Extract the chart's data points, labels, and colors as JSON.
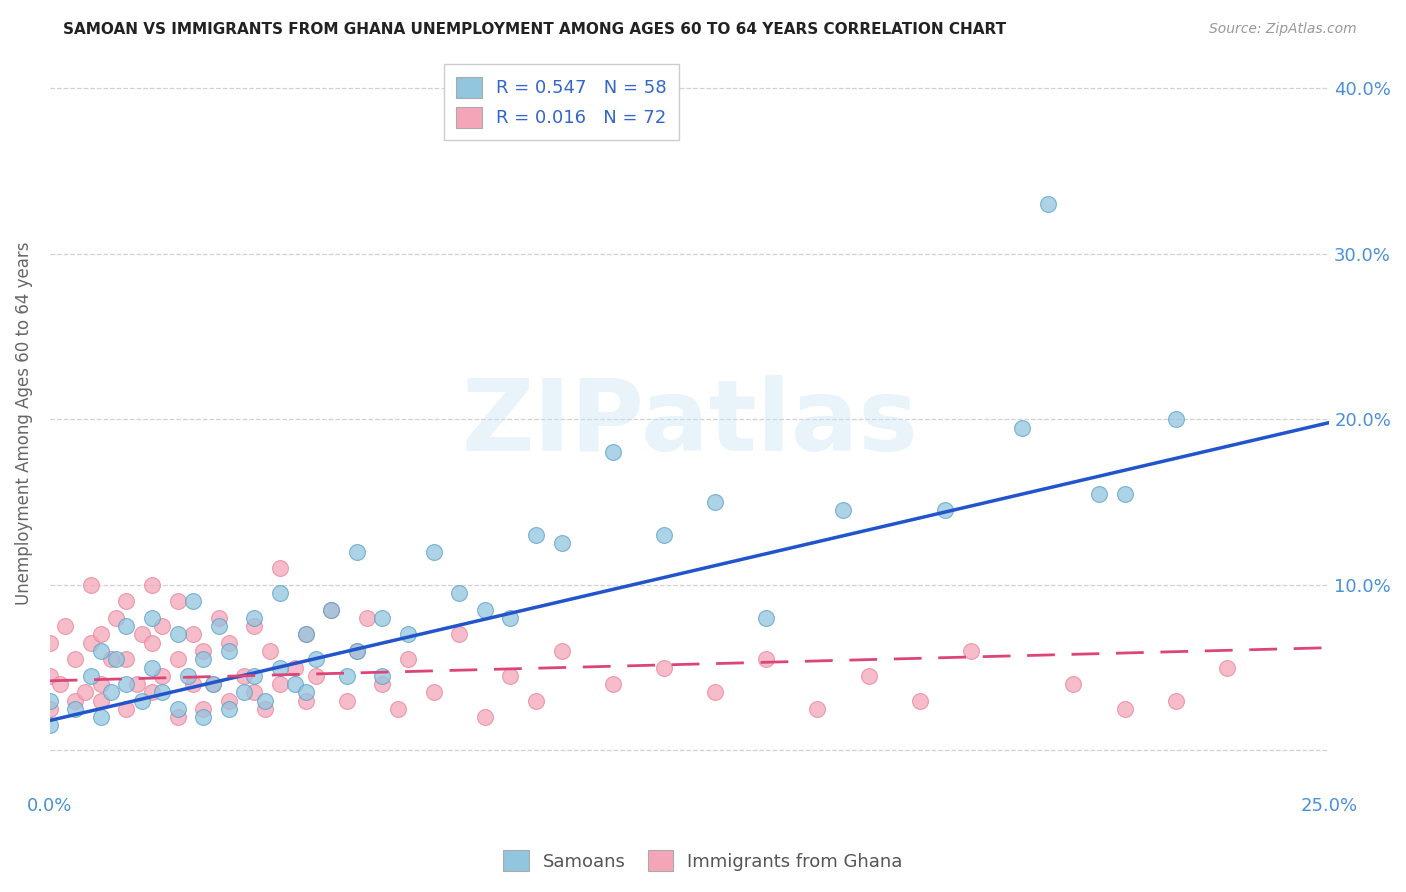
{
  "title": "SAMOAN VS IMMIGRANTS FROM GHANA UNEMPLOYMENT AMONG AGES 60 TO 64 YEARS CORRELATION CHART",
  "source": "Source: ZipAtlas.com",
  "ylabel": "Unemployment Among Ages 60 to 64 years",
  "xlim": [
    0.0,
    0.25
  ],
  "ylim": [
    -0.025,
    0.42
  ],
  "xtick_positions": [
    0.0,
    0.05,
    0.1,
    0.15,
    0.2,
    0.25
  ],
  "xtick_labels": [
    "0.0%",
    "",
    "",
    "",
    "",
    "25.0%"
  ],
  "ytick_positions": [
    0.0,
    0.1,
    0.2,
    0.3,
    0.4
  ],
  "ytick_labels": [
    "",
    "10.0%",
    "20.0%",
    "30.0%",
    "40.0%"
  ],
  "blue_color": "#92c5de",
  "pink_color": "#f4a6b8",
  "blue_edge_color": "#5a9ec8",
  "pink_edge_color": "#e8829a",
  "blue_line_color": "#2255cc",
  "pink_line_color": "#dd4477",
  "tick_label_color": "#4a90d9",
  "legend_text_color": "#3366cc",
  "watermark": "ZIPatlas",
  "grid_color": "#cccccc",
  "background_color": "#ffffff",
  "R_blue": 0.547,
  "N_blue": 58,
  "R_pink": 0.016,
  "N_pink": 72,
  "blue_line_x": [
    0.0,
    0.25
  ],
  "blue_line_y": [
    0.018,
    0.198
  ],
  "pink_line_x": [
    0.0,
    0.25
  ],
  "pink_line_y": [
    0.042,
    0.062
  ],
  "blue_scatter_x": [
    0.0,
    0.0,
    0.005,
    0.008,
    0.01,
    0.01,
    0.012,
    0.013,
    0.015,
    0.015,
    0.018,
    0.02,
    0.02,
    0.022,
    0.025,
    0.025,
    0.027,
    0.028,
    0.03,
    0.03,
    0.032,
    0.033,
    0.035,
    0.035,
    0.038,
    0.04,
    0.04,
    0.042,
    0.045,
    0.045,
    0.048,
    0.05,
    0.05,
    0.052,
    0.055,
    0.058,
    0.06,
    0.06,
    0.065,
    0.065,
    0.07,
    0.075,
    0.08,
    0.085,
    0.09,
    0.095,
    0.1,
    0.11,
    0.12,
    0.13,
    0.14,
    0.155,
    0.175,
    0.19,
    0.195,
    0.205,
    0.21,
    0.22
  ],
  "blue_scatter_y": [
    0.03,
    0.015,
    0.025,
    0.045,
    0.02,
    0.06,
    0.035,
    0.055,
    0.04,
    0.075,
    0.03,
    0.05,
    0.08,
    0.035,
    0.025,
    0.07,
    0.045,
    0.09,
    0.02,
    0.055,
    0.04,
    0.075,
    0.025,
    0.06,
    0.035,
    0.045,
    0.08,
    0.03,
    0.05,
    0.095,
    0.04,
    0.035,
    0.07,
    0.055,
    0.085,
    0.045,
    0.06,
    0.12,
    0.08,
    0.045,
    0.07,
    0.12,
    0.095,
    0.085,
    0.08,
    0.13,
    0.125,
    0.18,
    0.13,
    0.15,
    0.08,
    0.145,
    0.145,
    0.195,
    0.33,
    0.155,
    0.155,
    0.2
  ],
  "pink_scatter_x": [
    0.0,
    0.0,
    0.0,
    0.002,
    0.003,
    0.005,
    0.005,
    0.007,
    0.008,
    0.008,
    0.01,
    0.01,
    0.01,
    0.012,
    0.013,
    0.015,
    0.015,
    0.015,
    0.017,
    0.018,
    0.02,
    0.02,
    0.02,
    0.022,
    0.022,
    0.025,
    0.025,
    0.025,
    0.028,
    0.028,
    0.03,
    0.03,
    0.032,
    0.033,
    0.035,
    0.035,
    0.038,
    0.04,
    0.04,
    0.042,
    0.043,
    0.045,
    0.045,
    0.048,
    0.05,
    0.05,
    0.052,
    0.055,
    0.058,
    0.06,
    0.062,
    0.065,
    0.068,
    0.07,
    0.075,
    0.08,
    0.085,
    0.09,
    0.095,
    0.1,
    0.11,
    0.12,
    0.13,
    0.14,
    0.15,
    0.16,
    0.17,
    0.18,
    0.2,
    0.21,
    0.22,
    0.23
  ],
  "pink_scatter_y": [
    0.045,
    0.065,
    0.025,
    0.04,
    0.075,
    0.03,
    0.055,
    0.035,
    0.065,
    0.1,
    0.04,
    0.07,
    0.03,
    0.055,
    0.08,
    0.025,
    0.055,
    0.09,
    0.04,
    0.07,
    0.035,
    0.065,
    0.1,
    0.045,
    0.075,
    0.02,
    0.055,
    0.09,
    0.04,
    0.07,
    0.025,
    0.06,
    0.04,
    0.08,
    0.03,
    0.065,
    0.045,
    0.035,
    0.075,
    0.025,
    0.06,
    0.04,
    0.11,
    0.05,
    0.03,
    0.07,
    0.045,
    0.085,
    0.03,
    0.06,
    0.08,
    0.04,
    0.025,
    0.055,
    0.035,
    0.07,
    0.02,
    0.045,
    0.03,
    0.06,
    0.04,
    0.05,
    0.035,
    0.055,
    0.025,
    0.045,
    0.03,
    0.06,
    0.04,
    0.025,
    0.03,
    0.05
  ]
}
